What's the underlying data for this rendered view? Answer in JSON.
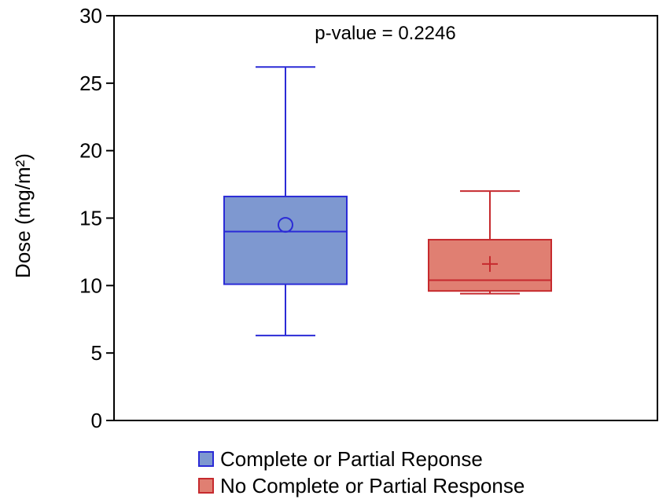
{
  "chart_data": {
    "type": "box",
    "title": "",
    "annotation": "p-value = 0.2246",
    "xlabel": "",
    "ylabel": "Dose (mg/m²)",
    "ylim": [
      0,
      30
    ],
    "yticks": [
      0,
      5,
      10,
      15,
      20,
      25,
      30
    ],
    "grid": false,
    "legend_position": "bottom",
    "series": [
      {
        "name": "Complete or Partial Reponse",
        "min": 6.3,
        "q1": 10.1,
        "median": 14.0,
        "q3": 16.6,
        "max": 26.2,
        "mean": 14.5,
        "mean_marker": "circle",
        "fill": "#7e98d0",
        "stroke": "#2b2bd6"
      },
      {
        "name": "No Complete or Partial Response",
        "min": 9.4,
        "q1": 9.6,
        "median": 10.4,
        "q3": 13.4,
        "max": 17.0,
        "mean": 11.6,
        "mean_marker": "plus",
        "fill": "#e07f72",
        "stroke": "#c62a2e"
      }
    ]
  }
}
